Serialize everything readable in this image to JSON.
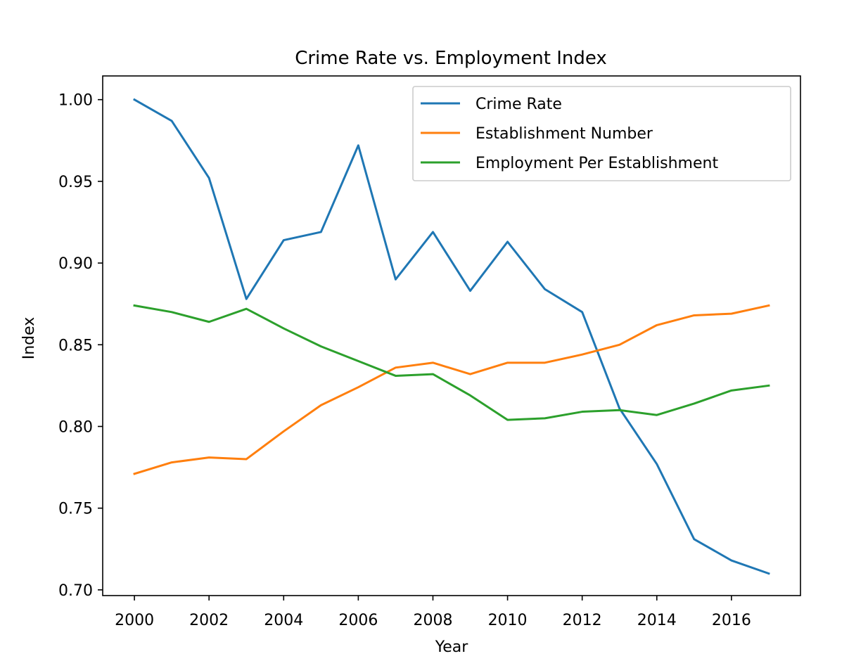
{
  "chart_data": {
    "type": "line",
    "title": "Crime Rate vs. Employment Index",
    "xlabel": "Year",
    "ylabel": "Index",
    "xlim": [
      1999.15,
      2017.85
    ],
    "ylim": [
      0.6965,
      1.0145
    ],
    "xticks": [
      2000,
      2002,
      2004,
      2006,
      2008,
      2010,
      2012,
      2014,
      2016
    ],
    "xtick_labels": [
      "2000",
      "2002",
      "2004",
      "2006",
      "2008",
      "2010",
      "2012",
      "2014",
      "2016"
    ],
    "yticks": [
      0.7,
      0.75,
      0.8,
      0.85,
      0.9,
      0.95,
      1.0
    ],
    "ytick_labels": [
      "0.70",
      "0.75",
      "0.80",
      "0.85",
      "0.90",
      "0.95",
      "1.00"
    ],
    "grid": false,
    "legend_position": "top-right",
    "x": [
      2000,
      2001,
      2002,
      2003,
      2004,
      2005,
      2006,
      2007,
      2008,
      2009,
      2010,
      2011,
      2012,
      2013,
      2014,
      2015,
      2016,
      2017
    ],
    "series": [
      {
        "name": "Crime Rate",
        "color": "#1f77b4",
        "values": [
          1.0,
          0.987,
          0.952,
          0.878,
          0.914,
          0.919,
          0.972,
          0.89,
          0.919,
          0.883,
          0.913,
          0.884,
          0.87,
          0.811,
          0.777,
          0.731,
          0.718,
          0.71
        ]
      },
      {
        "name": "Establishment Number",
        "color": "#ff7f0e",
        "values": [
          0.771,
          0.778,
          0.781,
          0.78,
          0.797,
          0.813,
          0.824,
          0.836,
          0.839,
          0.832,
          0.839,
          0.839,
          0.844,
          0.85,
          0.862,
          0.868,
          0.869,
          0.874
        ]
      },
      {
        "name": "Employment Per Establishment",
        "color": "#2ca02c",
        "values": [
          0.874,
          0.87,
          0.864,
          0.872,
          0.86,
          0.849,
          0.84,
          0.831,
          0.832,
          0.819,
          0.804,
          0.805,
          0.809,
          0.81,
          0.807,
          0.814,
          0.822,
          0.825
        ]
      }
    ]
  }
}
